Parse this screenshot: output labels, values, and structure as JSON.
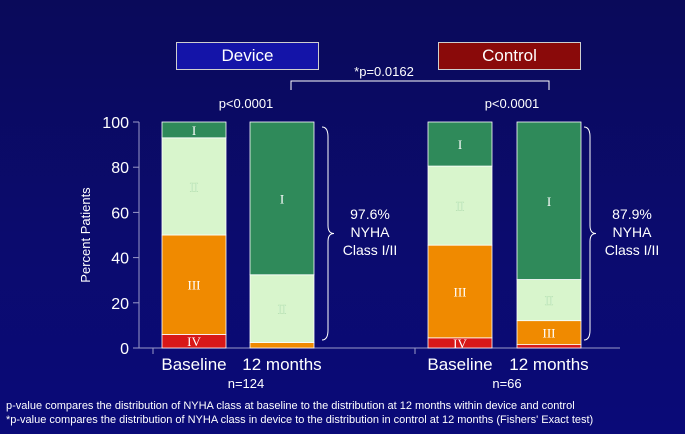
{
  "legend": [
    {
      "label": "Device",
      "color": "#1414a8"
    },
    {
      "label": "Control",
      "color": "#8a0a0a"
    }
  ],
  "footnotes": [
    "p-value compares the distribution of NYHA class at baseline to the distribution at 12 months within device and control",
    "*p-value compares the distribution of NYHA class in device to the distribution in control at 12 months (Fishers' Exact test)"
  ],
  "chart_data": {
    "type": "bar",
    "stacked": true,
    "ylabel": "Percent Patients",
    "ylim": [
      0,
      100
    ],
    "yticks": [
      "0",
      "20",
      "40",
      "60",
      "80",
      "100"
    ],
    "class_colors": {
      "IV": "#d81818",
      "III": "#f08a00",
      "II": "#d8f5cc",
      "I": "#2f8a5a"
    },
    "groups": [
      {
        "name": "Device",
        "n_label": "n=124",
        "p_label": "p<0.0001",
        "bracket_label": [
          "97.6%",
          "NYHA",
          "Class I/II"
        ],
        "bars": [
          {
            "category": "Baseline",
            "segments": [
              {
                "class": "IV",
                "value": 6
              },
              {
                "class": "III",
                "value": 44
              },
              {
                "class": "II",
                "value": 43
              },
              {
                "class": "I",
                "value": 7
              }
            ]
          },
          {
            "category": "12 months",
            "segments": [
              {
                "class": "IV",
                "value": 0
              },
              {
                "class": "III",
                "value": 2.4
              },
              {
                "class": "II",
                "value": 30
              },
              {
                "class": "I",
                "value": 67.6
              }
            ]
          }
        ]
      },
      {
        "name": "Control",
        "n_label": "n=66",
        "p_label": "p<0.0001",
        "bracket_label": [
          "87.9%",
          "NYHA",
          "Class I/II"
        ],
        "bars": [
          {
            "category": "Baseline",
            "segments": [
              {
                "class": "IV",
                "value": 4.5
              },
              {
                "class": "III",
                "value": 41
              },
              {
                "class": "II",
                "value": 35
              },
              {
                "class": "I",
                "value": 19.5
              }
            ]
          },
          {
            "category": "12 months",
            "segments": [
              {
                "class": "IV",
                "value": 1.5
              },
              {
                "class": "III",
                "value": 10.6
              },
              {
                "class": "II",
                "value": 18.2
              },
              {
                "class": "I",
                "value": 69.7
              }
            ]
          }
        ]
      }
    ],
    "between_group_p": "*p=0.0162"
  }
}
